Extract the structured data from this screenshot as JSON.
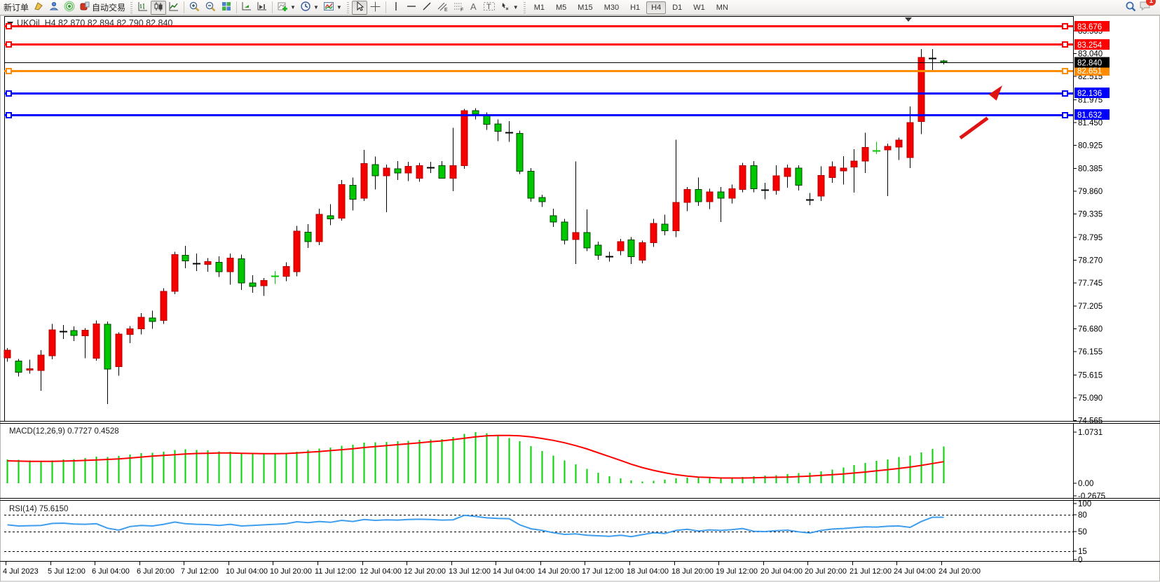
{
  "toolbar": {
    "new_order_label": "新订单",
    "auto_trading_label": "自动交易",
    "timeframes": [
      "M1",
      "M5",
      "M15",
      "M30",
      "H1",
      "H4",
      "D1",
      "W1",
      "MN"
    ],
    "active_timeframe": "H4",
    "notification_count": "1",
    "icon_names": [
      "terminal",
      "market-watch",
      "signals",
      "auto-trading",
      "bar-chart",
      "candlesticks",
      "line-chart",
      "zoom-in",
      "zoom-out",
      "tile-windows",
      "auto-scroll",
      "chart-shift",
      "indicators",
      "periods",
      "templates",
      "cursor",
      "crosshair",
      "vertical-line",
      "horizontal-line",
      "trendline",
      "equidistant-channel",
      "fibonacci",
      "text",
      "text-label",
      "arrows",
      "search",
      "notifications"
    ]
  },
  "chart_data": {
    "type": "candlestick",
    "symbol_header": {
      "symbol": "UKOil",
      "timeframe": "H4",
      "open": "82.870",
      "high": "82.894",
      "low": "82.790",
      "close": "82.840"
    },
    "price_axis_ticks": [
      "83.565",
      "83.040",
      "82.515",
      "81.975",
      "81.450",
      "80.925",
      "80.385",
      "79.860",
      "79.335",
      "78.795",
      "78.270",
      "77.745",
      "77.205",
      "76.680",
      "76.155",
      "75.615",
      "75.090",
      "74.565"
    ],
    "horizontal_lines": [
      {
        "price": 83.676,
        "label": "83.676",
        "color": "#ff0000",
        "width": 3
      },
      {
        "price": 83.254,
        "label": "83.254",
        "color": "#ff0000",
        "width": 3
      },
      {
        "price": 82.651,
        "label": "82.651",
        "color": "#ff8c00",
        "width": 3
      },
      {
        "price": 82.136,
        "label": "82.136",
        "color": "#0000ff",
        "width": 3
      },
      {
        "price": 81.632,
        "label": "81.632",
        "color": "#0000ff",
        "width": 3
      }
    ],
    "current_price": {
      "price": 82.84,
      "label": "82.840",
      "color": "#000000"
    },
    "time_labels": [
      "4 Jul 2023",
      "5 Jul 12:00",
      "6 Jul 04:00",
      "6 Jul 20:00",
      "7 Jul 12:00",
      "10 Jul 04:00",
      "10 Jul 20:00",
      "11 Jul 12:00",
      "12 Jul 04:00",
      "12 Jul 20:00",
      "13 Jul 12:00",
      "14 Jul 04:00",
      "14 Jul 20:00",
      "17 Jul 12:00",
      "18 Jul 04:00",
      "18 Jul 20:00",
      "19 Jul 12:00",
      "20 Jul 04:00",
      "20 Jul 20:00",
      "21 Jul 12:00",
      "24 Jul 04:00",
      "24 Jul 20:00"
    ],
    "candles": [
      [
        76.01,
        76.24,
        75.92,
        76.19
      ],
      [
        75.94,
        75.99,
        75.58,
        75.68
      ],
      [
        75.73,
        75.97,
        75.65,
        75.76
      ],
      [
        75.72,
        76.19,
        75.25,
        76.08
      ],
      [
        76.06,
        76.8,
        75.98,
        76.66
      ],
      [
        76.62,
        76.77,
        76.45,
        76.62,
        "k"
      ],
      [
        76.64,
        76.74,
        76.4,
        76.53
      ],
      [
        76.52,
        76.7,
        76.0,
        76.65
      ],
      [
        76.0,
        76.88,
        75.95,
        76.8
      ],
      [
        76.79,
        76.85,
        74.94,
        75.75
      ],
      [
        75.81,
        76.6,
        75.6,
        76.56
      ],
      [
        76.55,
        76.75,
        76.35,
        76.68
      ],
      [
        76.68,
        77.05,
        76.55,
        76.95
      ],
      [
        76.93,
        77.1,
        76.68,
        76.85
      ],
      [
        76.88,
        77.62,
        76.8,
        77.55
      ],
      [
        77.55,
        78.46,
        77.48,
        78.4
      ],
      [
        78.38,
        78.6,
        78.08,
        78.25
      ],
      [
        78.2,
        78.42,
        78.02,
        78.2,
        "k"
      ],
      [
        78.17,
        78.32,
        78.0,
        78.24
      ],
      [
        78.22,
        78.36,
        77.88,
        78.0
      ],
      [
        78.0,
        78.42,
        77.7,
        78.32
      ],
      [
        78.3,
        78.4,
        77.58,
        77.74
      ],
      [
        77.74,
        77.92,
        77.52,
        77.66
      ],
      [
        77.68,
        77.86,
        77.44,
        77.8
      ],
      [
        77.9,
        78.02,
        77.72,
        77.9,
        "g"
      ],
      [
        77.9,
        78.22,
        77.78,
        78.12
      ],
      [
        78.0,
        79.06,
        77.9,
        78.94
      ],
      [
        78.92,
        79.1,
        78.55,
        78.7
      ],
      [
        78.7,
        79.46,
        78.62,
        79.33
      ],
      [
        79.3,
        79.56,
        79.08,
        79.22
      ],
      [
        79.24,
        80.12,
        79.18,
        80.02
      ],
      [
        80.0,
        80.18,
        79.42,
        79.68
      ],
      [
        79.7,
        80.82,
        79.64,
        80.5
      ],
      [
        80.48,
        80.66,
        79.9,
        80.22
      ],
      [
        80.22,
        80.48,
        79.38,
        80.4
      ],
      [
        80.38,
        80.56,
        80.12,
        80.28
      ],
      [
        80.28,
        80.54,
        80.1,
        80.44
      ],
      [
        80.16,
        80.52,
        80.08,
        80.45
      ],
      [
        80.42,
        80.54,
        80.28,
        80.42,
        "k"
      ],
      [
        80.45,
        80.56,
        80.2,
        80.16
      ],
      [
        80.16,
        81.33,
        79.86,
        80.45
      ],
      [
        80.45,
        81.76,
        80.38,
        81.72
      ],
      [
        81.72,
        81.78,
        81.52,
        81.64
      ],
      [
        81.6,
        81.68,
        81.28,
        81.41
      ],
      [
        81.42,
        81.52,
        81.02,
        81.25
      ],
      [
        81.22,
        81.48,
        81.0,
        81.22,
        "k"
      ],
      [
        81.2,
        81.26,
        80.26,
        80.32
      ],
      [
        80.32,
        80.4,
        79.62,
        79.7
      ],
      [
        79.72,
        79.78,
        79.5,
        79.62
      ],
      [
        79.3,
        79.46,
        79.04,
        79.15
      ],
      [
        79.15,
        79.22,
        78.63,
        78.73
      ],
      [
        78.75,
        80.55,
        78.18,
        78.91
      ],
      [
        78.91,
        79.44,
        78.48,
        78.55
      ],
      [
        78.62,
        78.7,
        78.28,
        78.38
      ],
      [
        78.35,
        78.46,
        78.24,
        78.35,
        "k"
      ],
      [
        78.49,
        78.76,
        78.38,
        78.7
      ],
      [
        78.74,
        78.8,
        78.18,
        78.35
      ],
      [
        78.27,
        78.72,
        78.2,
        78.67
      ],
      [
        78.67,
        79.22,
        78.58,
        79.12
      ],
      [
        79.1,
        79.32,
        78.84,
        78.95
      ],
      [
        78.95,
        81.05,
        78.8,
        79.6
      ],
      [
        79.6,
        79.96,
        79.4,
        79.9
      ],
      [
        79.9,
        80.18,
        79.52,
        79.62
      ],
      [
        79.62,
        79.92,
        79.45,
        79.85
      ],
      [
        79.85,
        79.96,
        79.15,
        79.7
      ],
      [
        79.7,
        80.02,
        79.58,
        79.92
      ],
      [
        79.9,
        80.52,
        79.84,
        80.45
      ],
      [
        80.45,
        80.56,
        79.84,
        79.92
      ],
      [
        79.9,
        80.06,
        79.68,
        79.9,
        "k"
      ],
      [
        79.88,
        80.46,
        79.78,
        80.22
      ],
      [
        80.2,
        80.48,
        79.94,
        80.4
      ],
      [
        80.4,
        80.46,
        79.88,
        80.0
      ],
      [
        79.67,
        79.82,
        79.54,
        79.67,
        "k"
      ],
      [
        79.75,
        80.44,
        79.64,
        80.23
      ],
      [
        80.18,
        80.55,
        80.06,
        80.43
      ],
      [
        80.33,
        80.67,
        80.02,
        80.4
      ],
      [
        80.42,
        80.83,
        79.83,
        80.56
      ],
      [
        80.56,
        81.21,
        80.28,
        80.87
      ],
      [
        80.8,
        81.0,
        80.72,
        80.8,
        "g"
      ],
      [
        80.82,
        80.96,
        79.75,
        80.9
      ],
      [
        80.88,
        81.1,
        80.58,
        81.04
      ],
      [
        80.64,
        81.82,
        80.4,
        81.45
      ],
      [
        81.47,
        83.15,
        81.18,
        82.95
      ],
      [
        82.93,
        83.15,
        82.63,
        82.93,
        "k"
      ],
      [
        82.87,
        82.894,
        82.79,
        82.84
      ]
    ],
    "macd": {
      "label": "MACD(12,26,9)",
      "main_value": "0.7727",
      "signal_value": "0.4528",
      "axis_labels": [
        "1.0731",
        "0.00",
        "-0.2675"
      ],
      "histogram": [
        0.5,
        0.49,
        0.48,
        0.47,
        0.48,
        0.5,
        0.51,
        0.53,
        0.56,
        0.55,
        0.57,
        0.6,
        0.63,
        0.64,
        0.66,
        0.7,
        0.71,
        0.7,
        0.69,
        0.67,
        0.66,
        0.64,
        0.62,
        0.61,
        0.62,
        0.64,
        0.66,
        0.7,
        0.73,
        0.75,
        0.79,
        0.81,
        0.85,
        0.86,
        0.87,
        0.88,
        0.89,
        0.91,
        0.92,
        0.93,
        0.97,
        1.04,
        1.07,
        1.05,
        1.0,
        0.95,
        0.88,
        0.78,
        0.68,
        0.58,
        0.48,
        0.4,
        0.3,
        0.22,
        0.15,
        0.1,
        0.06,
        0.04,
        0.05,
        0.07,
        0.1,
        0.12,
        0.12,
        0.11,
        0.1,
        0.11,
        0.13,
        0.15,
        0.16,
        0.17,
        0.19,
        0.21,
        0.22,
        0.25,
        0.29,
        0.33,
        0.38,
        0.43,
        0.47,
        0.5,
        0.55,
        0.58,
        0.65,
        0.72,
        0.7727
      ],
      "signal": [
        0.47,
        0.465,
        0.46,
        0.46,
        0.46,
        0.465,
        0.47,
        0.48,
        0.49,
        0.5,
        0.51,
        0.53,
        0.55,
        0.57,
        0.585,
        0.6,
        0.615,
        0.625,
        0.63,
        0.635,
        0.635,
        0.63,
        0.625,
        0.62,
        0.62,
        0.625,
        0.635,
        0.65,
        0.665,
        0.685,
        0.705,
        0.725,
        0.75,
        0.77,
        0.79,
        0.81,
        0.83,
        0.85,
        0.87,
        0.89,
        0.915,
        0.945,
        0.975,
        0.995,
        1.005,
        1.005,
        0.995,
        0.975,
        0.94,
        0.9,
        0.85,
        0.79,
        0.72,
        0.64,
        0.56,
        0.48,
        0.4,
        0.33,
        0.27,
        0.22,
        0.18,
        0.15,
        0.13,
        0.12,
        0.11,
        0.11,
        0.11,
        0.115,
        0.12,
        0.125,
        0.13,
        0.14,
        0.15,
        0.165,
        0.18,
        0.195,
        0.215,
        0.235,
        0.26,
        0.285,
        0.31,
        0.34,
        0.375,
        0.415,
        0.4528
      ]
    },
    "rsi": {
      "label": "RSI(14)",
      "value": "75.6150",
      "axis_labels": [
        "100",
        "80",
        "50",
        "15",
        "0"
      ],
      "levels": [
        80,
        50,
        15
      ],
      "series": [
        62,
        60,
        60.5,
        61,
        64.5,
        65,
        63.5,
        63,
        64,
        56,
        52.5,
        59,
        61,
        60,
        63,
        67,
        64,
        63,
        62.5,
        61,
        63,
        60,
        61,
        62,
        63,
        64,
        67.5,
        66,
        68,
        66.5,
        70,
        68,
        71.5,
        70,
        71,
        70.5,
        71.5,
        72,
        71.5,
        70.5,
        71,
        79,
        77,
        74.5,
        73.5,
        73,
        62,
        55,
        52,
        48,
        45,
        46,
        43.5,
        42.5,
        41.5,
        43.5,
        41,
        44.5,
        48,
        46.5,
        52,
        54,
        51,
        53,
        52,
        53.5,
        55.5,
        50.5,
        50,
        51.5,
        52.5,
        49.5,
        47.5,
        52,
        54.5,
        55.5,
        57,
        58.5,
        58,
        59.5,
        60,
        57.5,
        68,
        75.6,
        75.6
      ]
    },
    "annotation_arrow": {
      "from": [
        1370,
        175
      ],
      "to": [
        1430,
        100
      ],
      "color": "#e01212"
    },
    "colors": {
      "bull": "#f40000",
      "bear": "#00c800",
      "wick": "#000000",
      "macd_hist": "#00d300",
      "macd_signal": "#ff0000",
      "rsi_line": "#3e9ded"
    }
  }
}
